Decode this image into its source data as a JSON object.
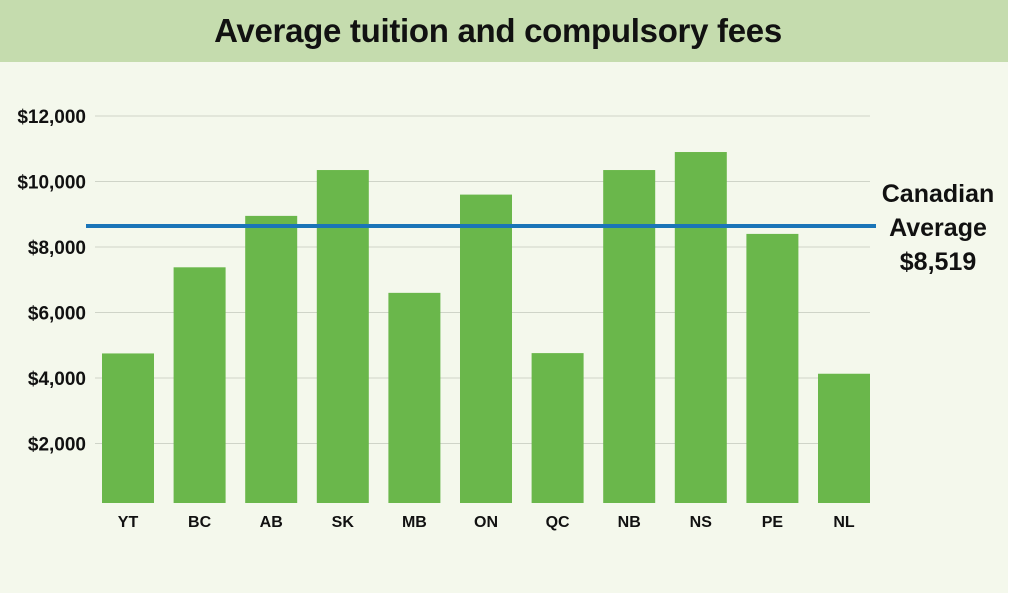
{
  "chart_data": {
    "type": "bar",
    "title": "Average tuition and compulsory fees",
    "xlabel": "",
    "ylabel": "",
    "categories": [
      "YT",
      "BC",
      "AB",
      "SK",
      "MB",
      "ON",
      "QC",
      "NB",
      "NS",
      "PE",
      "NL"
    ],
    "values": [
      4750,
      7380,
      8950,
      10350,
      6600,
      9600,
      4760,
      10350,
      10900,
      8400,
      4130
    ],
    "yticks": [
      "$2,000",
      "$4,000",
      "$6,000",
      "$8,000",
      "$10,000",
      "$12,000"
    ],
    "ylim": [
      0,
      12000
    ],
    "grid": true,
    "bar_color": "#6ab74b",
    "grid_color": "#cfd4c8",
    "reference_line": {
      "value": 8519,
      "label_lines": [
        "Canadian",
        "Average",
        "$8,519"
      ],
      "color": "#1a75b8"
    }
  },
  "colors": {
    "background": "#f4f8ec",
    "title_band": "#c5dcae"
  }
}
